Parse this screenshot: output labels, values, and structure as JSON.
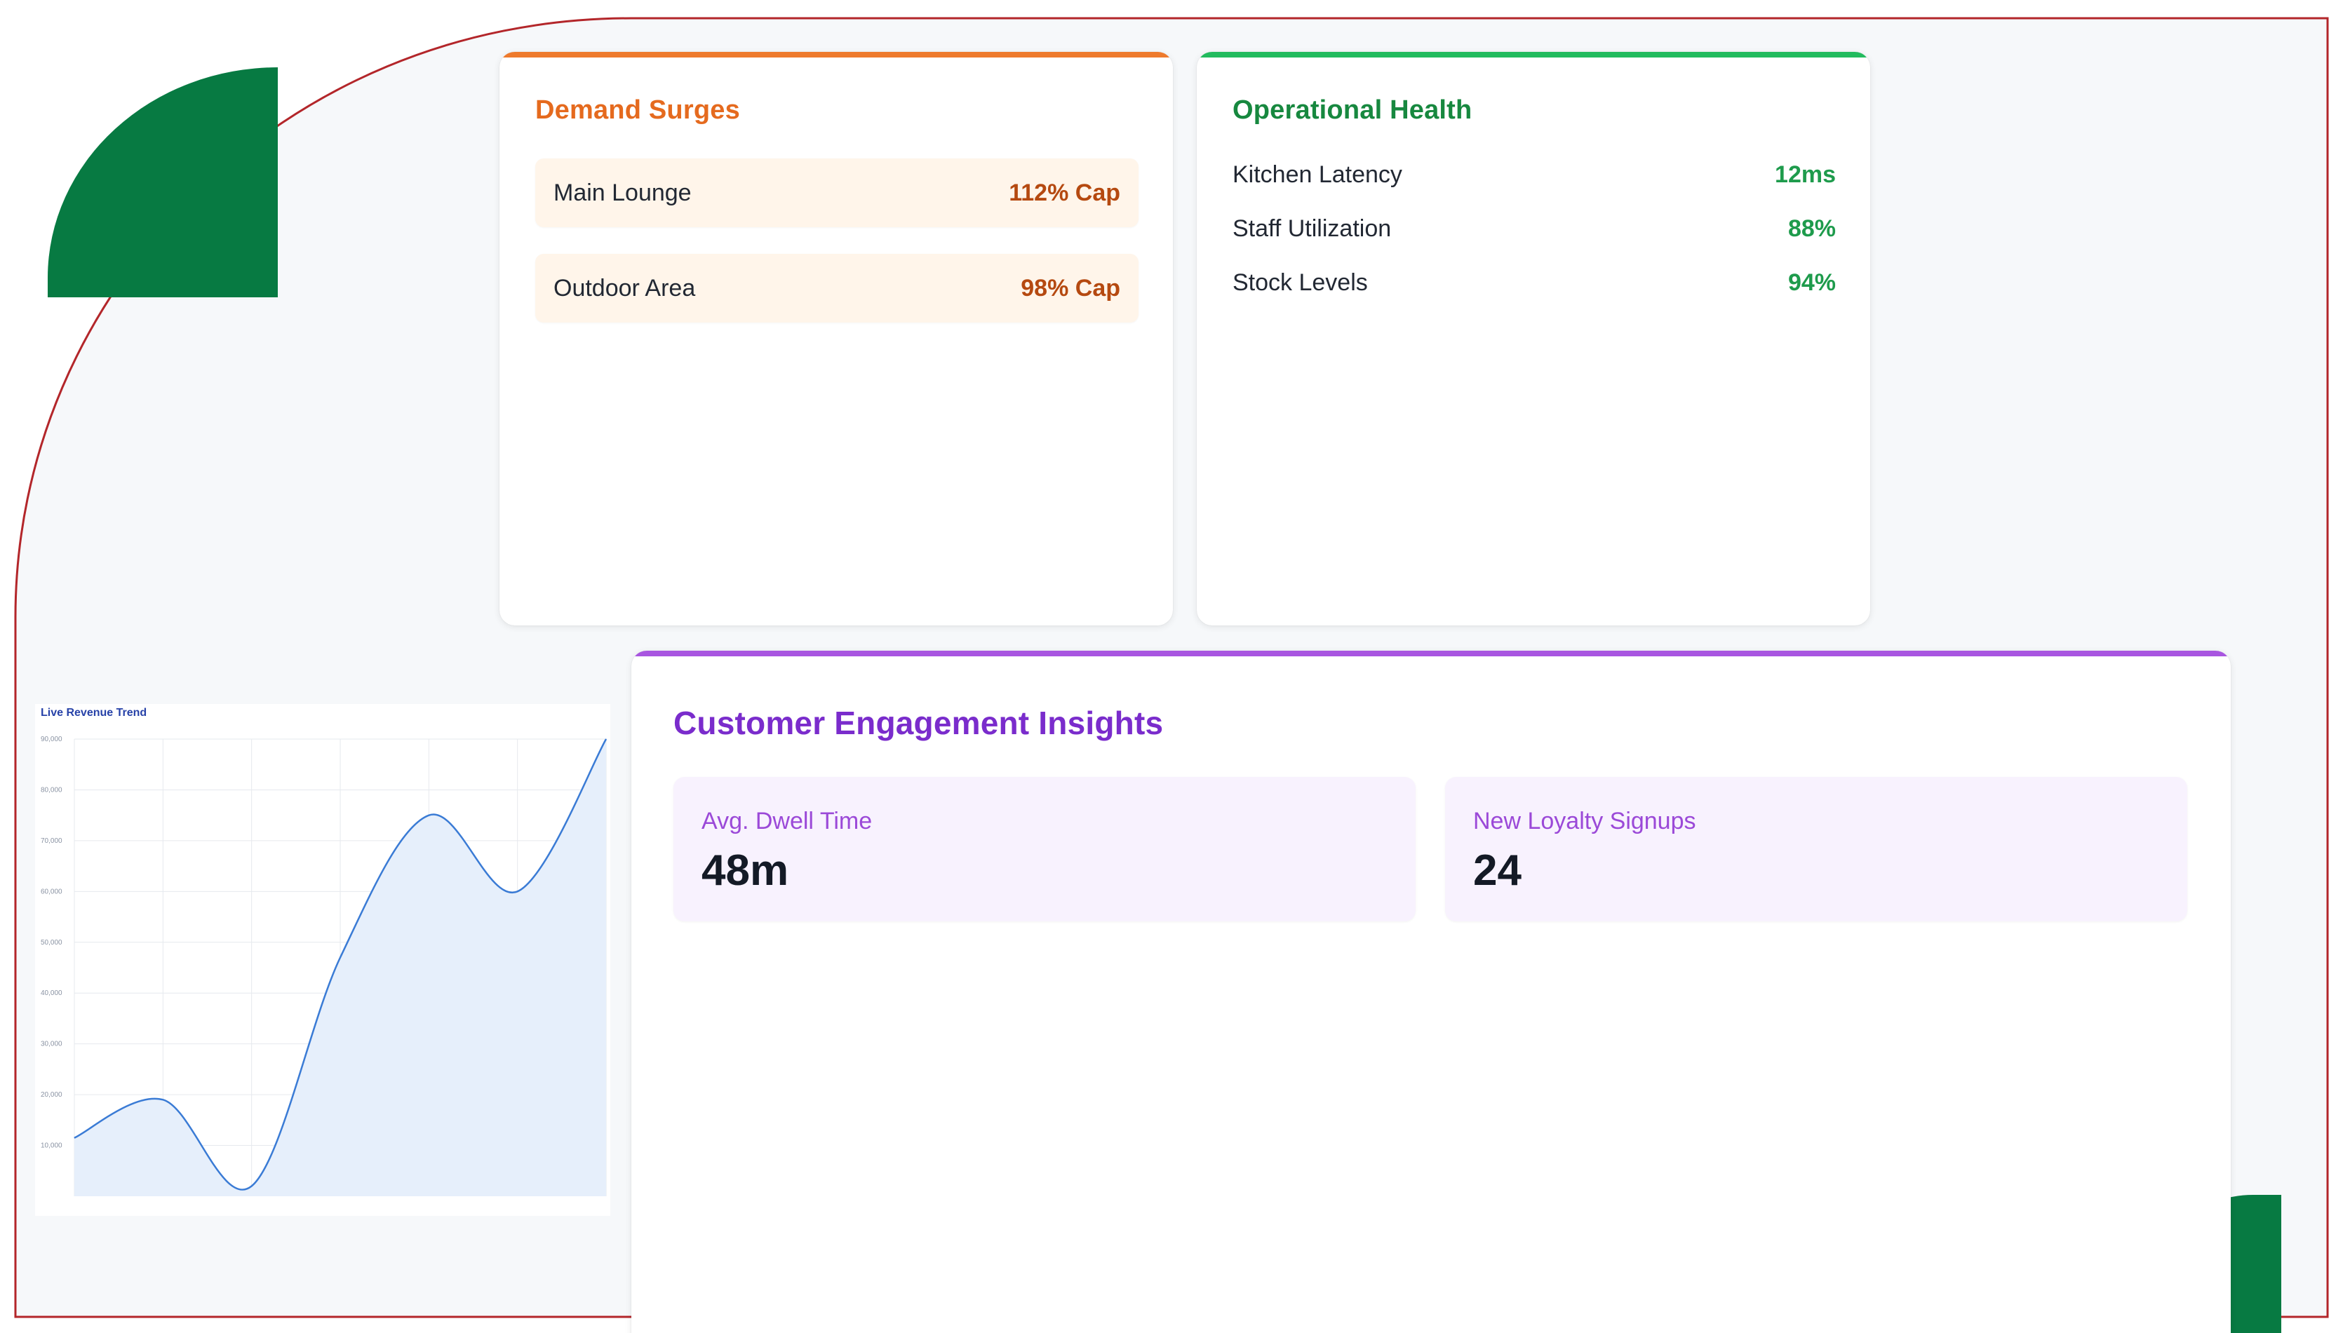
{
  "demand_surges": {
    "title": "Demand Surges",
    "items": [
      {
        "name": "Main Lounge",
        "value": "112% Cap"
      },
      {
        "name": "Outdoor Area",
        "value": "98% Cap"
      }
    ]
  },
  "operational_health": {
    "title": "Operational Health",
    "items": [
      {
        "name": "Kitchen Latency",
        "value": "12ms"
      },
      {
        "name": "Staff Utilization",
        "value": "88%"
      },
      {
        "name": "Stock Levels",
        "value": "94%"
      }
    ]
  },
  "customer_engagement": {
    "title": "Customer Engagement Insights",
    "metrics": [
      {
        "label": "Avg. Dwell Time",
        "value": "48m"
      },
      {
        "label": "New Loyalty Signups",
        "value": "24"
      }
    ]
  },
  "colors": {
    "accent_orange": "#ee7a2c",
    "accent_green": "#22bb5e",
    "accent_purple": "#a855e0",
    "brand_green": "#077a42",
    "frame_red": "#b3262a",
    "chart_line": "#3a7bd5",
    "chart_fill": "#e6effb"
  },
  "chart_data": {
    "type": "area",
    "title": "Live Revenue Trend",
    "xlabel": "",
    "ylabel": "",
    "ylim": [
      0,
      90000
    ],
    "yticks": [
      "10,000",
      "20,000",
      "30,000",
      "40,000",
      "50,000",
      "60,000",
      "70,000",
      "80,000",
      "90,000"
    ],
    "grid": true,
    "series": [
      {
        "points": [
          [
            0,
            11500
          ],
          [
            1,
            19000
          ],
          [
            2,
            2000
          ],
          [
            3,
            47000
          ],
          [
            4,
            75000
          ],
          [
            5,
            60000
          ],
          [
            6,
            90000
          ]
        ]
      }
    ],
    "xlim": [
      0,
      6
    ]
  }
}
